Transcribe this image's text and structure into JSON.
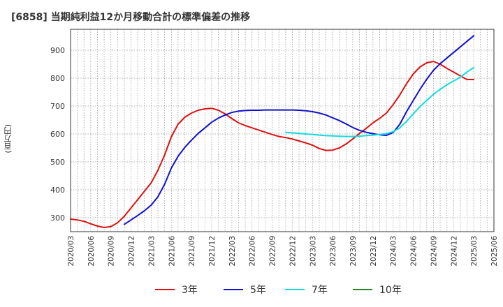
{
  "chart_data": {
    "type": "line",
    "title": "[6858]  当期純利益12か月移動合計の標準偏差の推移",
    "ylabel": "(百万円)",
    "xlabel": "",
    "ylim": [
      250,
      975
    ],
    "yticks": [
      300,
      400,
      500,
      600,
      700,
      800,
      900
    ],
    "grid": true,
    "legend_position": "bottom",
    "x_ticks": [
      "2020/03",
      "2020/06",
      "2020/09",
      "2020/12",
      "2021/03",
      "2021/06",
      "2021/09",
      "2021/12",
      "2022/03",
      "2022/06",
      "2022/09",
      "2022/12",
      "2023/03",
      "2023/06",
      "2023/09",
      "2023/12",
      "2024/03",
      "2024/06",
      "2024/09",
      "2024/12",
      "2025/03",
      "2025/06"
    ],
    "series": [
      {
        "name": "3年",
        "color": "#dd1111",
        "x": [
          "2020/03",
          "2020/04",
          "2020/05",
          "2020/06",
          "2020/07",
          "2020/08",
          "2020/09",
          "2020/10",
          "2020/11",
          "2020/12",
          "2021/01",
          "2021/02",
          "2021/03",
          "2021/04",
          "2021/05",
          "2021/06",
          "2021/07",
          "2021/08",
          "2021/09",
          "2021/10",
          "2021/11",
          "2021/12",
          "2022/01",
          "2022/02",
          "2022/03",
          "2022/04",
          "2022/05",
          "2022/06",
          "2022/07",
          "2022/08",
          "2022/09",
          "2022/10",
          "2022/11",
          "2022/12",
          "2023/01",
          "2023/02",
          "2023/03",
          "2023/04",
          "2023/05",
          "2023/06",
          "2023/07",
          "2023/08",
          "2023/09",
          "2023/10",
          "2023/11",
          "2023/12",
          "2024/01",
          "2024/02",
          "2024/03",
          "2024/04",
          "2024/05",
          "2024/06",
          "2024/07",
          "2024/08",
          "2024/09",
          "2024/10",
          "2024/11",
          "2024/12",
          "2025/01",
          "2025/02",
          "2025/03"
        ],
        "values": [
          295,
          292,
          287,
          278,
          270,
          265,
          268,
          282,
          305,
          335,
          365,
          395,
          425,
          470,
          525,
          590,
          635,
          660,
          675,
          685,
          690,
          692,
          685,
          672,
          655,
          640,
          630,
          622,
          614,
          606,
          598,
          591,
          587,
          582,
          575,
          568,
          560,
          548,
          541,
          542,
          550,
          564,
          582,
          602,
          620,
          640,
          656,
          675,
          705,
          740,
          780,
          815,
          840,
          855,
          860,
          850,
          835,
          822,
          808,
          795,
          795
        ]
      },
      {
        "name": "5年",
        "color": "#1111cc",
        "x": [
          "2020/11",
          "2020/12",
          "2021/01",
          "2021/02",
          "2021/03",
          "2021/04",
          "2021/05",
          "2021/06",
          "2021/07",
          "2021/08",
          "2021/09",
          "2021/10",
          "2021/11",
          "2021/12",
          "2022/01",
          "2022/02",
          "2022/03",
          "2022/04",
          "2022/05",
          "2022/06",
          "2022/07",
          "2022/08",
          "2022/09",
          "2022/10",
          "2022/11",
          "2022/12",
          "2023/01",
          "2023/02",
          "2023/03",
          "2023/04",
          "2023/05",
          "2023/06",
          "2023/07",
          "2023/08",
          "2023/09",
          "2023/10",
          "2023/11",
          "2023/12",
          "2024/01",
          "2024/02",
          "2024/03",
          "2024/04",
          "2024/05",
          "2024/06",
          "2024/07",
          "2024/08",
          "2024/09",
          "2024/10",
          "2024/11",
          "2024/12",
          "2025/01",
          "2025/02",
          "2025/03"
        ],
        "values": [
          276,
          292,
          308,
          325,
          345,
          375,
          420,
          478,
          520,
          552,
          578,
          602,
          622,
          642,
          657,
          668,
          677,
          682,
          684,
          685,
          685,
          686,
          686,
          686,
          686,
          686,
          685,
          683,
          680,
          675,
          668,
          658,
          648,
          636,
          623,
          613,
          606,
          601,
          597,
          595,
          605,
          635,
          680,
          720,
          760,
          796,
          828,
          852,
          872,
          892,
          912,
          932,
          952
        ]
      },
      {
        "name": "7年",
        "color": "#11dddd",
        "x": [
          "2022/11",
          "2022/12",
          "2023/01",
          "2023/02",
          "2023/03",
          "2023/04",
          "2023/05",
          "2023/06",
          "2023/07",
          "2023/08",
          "2023/09",
          "2023/10",
          "2023/11",
          "2023/12",
          "2024/01",
          "2024/02",
          "2024/03",
          "2024/04",
          "2024/05",
          "2024/06",
          "2024/07",
          "2024/08",
          "2024/09",
          "2024/10",
          "2024/11",
          "2024/12",
          "2025/01",
          "2025/02",
          "2025/03"
        ],
        "values": [
          606,
          604,
          602,
          600,
          598,
          596,
          594,
          593,
          592,
          591,
          591,
          592,
          594,
          596,
          598,
          601,
          608,
          622,
          645,
          672,
          698,
          720,
          742,
          760,
          776,
          790,
          803,
          822,
          838
        ]
      },
      {
        "name": "10年",
        "color": "#228822",
        "x": [],
        "values": []
      }
    ]
  }
}
